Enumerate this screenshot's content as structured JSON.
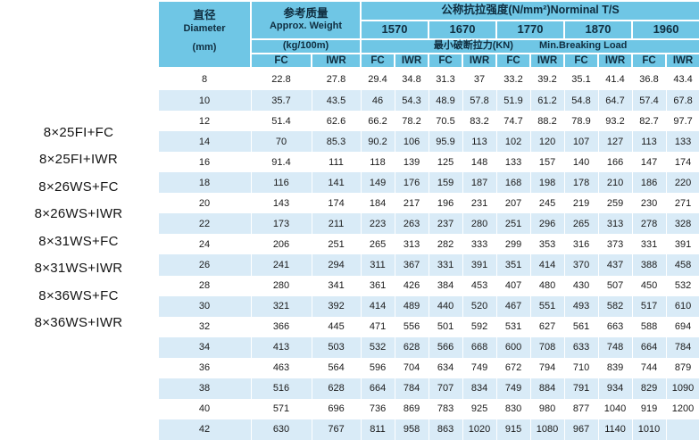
{
  "left_labels": [
    "8×25FI+FC",
    "8×25FI+IWR",
    "8×26WS+FC",
    "8×26WS+IWR",
    "8×31WS+FC",
    "8×31WS+IWR",
    "8×36WS+FC",
    "8×36WS+IWR"
  ],
  "chart_data": {
    "type": "table",
    "title": "公称抗拉强度(N/mm²)Norminal T/S",
    "header": {
      "diameter": {
        "zh": "直径",
        "en": "Diameter",
        "unit": "(mm)"
      },
      "weight": {
        "zh": "参考质量",
        "en": "Approx. Weight",
        "unit": "(kg/100m)"
      },
      "strength": {
        "title": "公称抗拉强度(N/mm²)Norminal T/S",
        "grades": [
          "1570",
          "1670",
          "1770",
          "1870",
          "1960"
        ],
        "breaking_zh": "最小破断拉力(KN)",
        "breaking_en": "Min.Breaking Load"
      },
      "fc_label": "FC",
      "iwr_label": "IWR"
    },
    "columns": [
      "Diameter (mm)",
      "Approx. Weight FC (kg/100m)",
      "Approx. Weight IWR (kg/100m)",
      "1570 FC",
      "1570 IWR",
      "1670 FC",
      "1670 IWR",
      "1770 FC",
      "1770 IWR",
      "1870 FC",
      "1870 IWR",
      "1960 FC",
      "1960 IWR"
    ],
    "rows": [
      [
        "8",
        "22.8",
        "27.8",
        "29.4",
        "34.8",
        "31.3",
        "37",
        "33.2",
        "39.2",
        "35.1",
        "41.4",
        "36.8",
        "43.4"
      ],
      [
        "10",
        "35.7",
        "43.5",
        "46",
        "54.3",
        "48.9",
        "57.8",
        "51.9",
        "61.2",
        "54.8",
        "64.7",
        "57.4",
        "67.8"
      ],
      [
        "12",
        "51.4",
        "62.6",
        "66.2",
        "78.2",
        "70.5",
        "83.2",
        "74.7",
        "88.2",
        "78.9",
        "93.2",
        "82.7",
        "97.7"
      ],
      [
        "14",
        "70",
        "85.3",
        "90.2",
        "106",
        "95.9",
        "113",
        "102",
        "120",
        "107",
        "127",
        "113",
        "133"
      ],
      [
        "16",
        "91.4",
        "111",
        "118",
        "139",
        "125",
        "148",
        "133",
        "157",
        "140",
        "166",
        "147",
        "174"
      ],
      [
        "18",
        "116",
        "141",
        "149",
        "176",
        "159",
        "187",
        "168",
        "198",
        "178",
        "210",
        "186",
        "220"
      ],
      [
        "20",
        "143",
        "174",
        "184",
        "217",
        "196",
        "231",
        "207",
        "245",
        "219",
        "259",
        "230",
        "271"
      ],
      [
        "22",
        "173",
        "211",
        "223",
        "263",
        "237",
        "280",
        "251",
        "296",
        "265",
        "313",
        "278",
        "328"
      ],
      [
        "24",
        "206",
        "251",
        "265",
        "313",
        "282",
        "333",
        "299",
        "353",
        "316",
        "373",
        "331",
        "391"
      ],
      [
        "26",
        "241",
        "294",
        "311",
        "367",
        "331",
        "391",
        "351",
        "414",
        "370",
        "437",
        "388",
        "458"
      ],
      [
        "28",
        "280",
        "341",
        "361",
        "426",
        "384",
        "453",
        "407",
        "480",
        "430",
        "507",
        "450",
        "532"
      ],
      [
        "30",
        "321",
        "392",
        "414",
        "489",
        "440",
        "520",
        "467",
        "551",
        "493",
        "582",
        "517",
        "610"
      ],
      [
        "32",
        "366",
        "445",
        "471",
        "556",
        "501",
        "592",
        "531",
        "627",
        "561",
        "663",
        "588",
        "694"
      ],
      [
        "34",
        "413",
        "503",
        "532",
        "628",
        "566",
        "668",
        "600",
        "708",
        "633",
        "748",
        "664",
        "784"
      ],
      [
        "36",
        "463",
        "564",
        "596",
        "704",
        "634",
        "749",
        "672",
        "794",
        "710",
        "839",
        "744",
        "879"
      ],
      [
        "38",
        "516",
        "628",
        "664",
        "784",
        "707",
        "834",
        "749",
        "884",
        "791",
        "934",
        "829",
        "1090"
      ],
      [
        "40",
        "571",
        "696",
        "736",
        "869",
        "783",
        "925",
        "830",
        "980",
        "877",
        "1040",
        "919",
        "1200"
      ],
      [
        "42",
        "630",
        "767",
        "811",
        "958",
        "863",
        "1020",
        "915",
        "1080",
        "967",
        "1140",
        "1010",
        ""
      ]
    ]
  },
  "colors": {
    "header_bg": "#6fc6e5",
    "band_bg": "#d9ebf7",
    "header_text": "#0f2d3f"
  }
}
